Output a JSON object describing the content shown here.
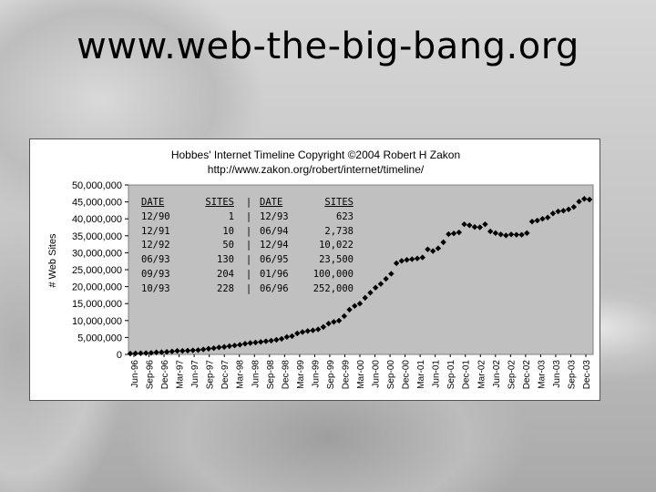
{
  "slide": {
    "title": "www.web-the-big-bang.org"
  },
  "chart_data": {
    "type": "scatter",
    "title": "Hobbes' Internet Timeline Copyright ©2004 Robert H Zakon",
    "subtitle": "http://www.zakon.org/robert/internet/timeline/",
    "ylabel": "# Web Sites",
    "ylim": [
      0,
      50000000
    ],
    "yticks": [
      "0",
      "5,000,000",
      "10,000,000",
      "15,000,000",
      "20,000,000",
      "25,000,000",
      "30,000,000",
      "35,000,000",
      "40,000,000",
      "45,000,000",
      "50,000,000"
    ],
    "xticks": [
      "Jun-96",
      "Sep-96",
      "Dec-96",
      "Mar-97",
      "Jun-97",
      "Sep-97",
      "Dec-97",
      "Mar-98",
      "Jun-98",
      "Sep-98",
      "Dec-98",
      "Mar-99",
      "Jun-99",
      "Sep-99",
      "Dec-99",
      "Mar-00",
      "Jun-00",
      "Sep-00",
      "Dec-00",
      "Mar-01",
      "Jun-01",
      "Sep-01",
      "Dec-01",
      "Mar-02",
      "Jun-02",
      "Sep-02",
      "Dec-02",
      "Mar-03",
      "Jun-03",
      "Sep-03",
      "Dec-03"
    ],
    "grid": false,
    "marker": "diamond",
    "colors": {
      "plot_bg": "#c0c0c0",
      "marker": "#000000"
    },
    "series": [
      {
        "values": [
          252000,
          299403,
          342081,
          397281,
          462047,
          603367,
          648613,
          739688,
          883251,
          1041153,
          1045065,
          1114274,
          1203096,
          1269800,
          1466000,
          1681868,
          1834710,
          2073000,
          2216000,
          2450000,
          2636000,
          2852000,
          3158000,
          3362000,
          3522000,
          3690000,
          3880000,
          4062280,
          4300000,
          4600000,
          5150000,
          5400000,
          6200000,
          6600000,
          6900000,
          7100000,
          7400000,
          8100000,
          9100000,
          9600000,
          9950000,
          11300000,
          13200000,
          14300000,
          15000000,
          16700000,
          18200000,
          19700000,
          20800000,
          22300000,
          23800000,
          26900000,
          27600000,
          27900000,
          28100000,
          28300000,
          28600000,
          31000000,
          30500000,
          31300000,
          33100000,
          35500000,
          35700000,
          36000000,
          38400000,
          38100000,
          37600000,
          37500000,
          38400000,
          36300000,
          35800000,
          35400000,
          35100000,
          35400000,
          35300000,
          35300000,
          35800000,
          39200000,
          39500000,
          40000000,
          40400000,
          41600000,
          42200000,
          42400000,
          42800000,
          43500000,
          45100000,
          45900000,
          45700000
        ]
      }
    ],
    "table": {
      "headers": [
        "DATE",
        "SITES",
        "|",
        "DATE",
        "SITES"
      ],
      "rows": [
        [
          "12/90",
          "1",
          "|",
          "12/93",
          "623"
        ],
        [
          "12/91",
          "10",
          "|",
          "06/94",
          "2,738"
        ],
        [
          "12/92",
          "50",
          "|",
          "12/94",
          "10,022"
        ],
        [
          "06/93",
          "130",
          "|",
          "06/95",
          "23,500"
        ],
        [
          "09/93",
          "204",
          "|",
          "01/96",
          "100,000"
        ],
        [
          "10/93",
          "228",
          "|",
          "06/96",
          "252,000"
        ]
      ]
    }
  }
}
